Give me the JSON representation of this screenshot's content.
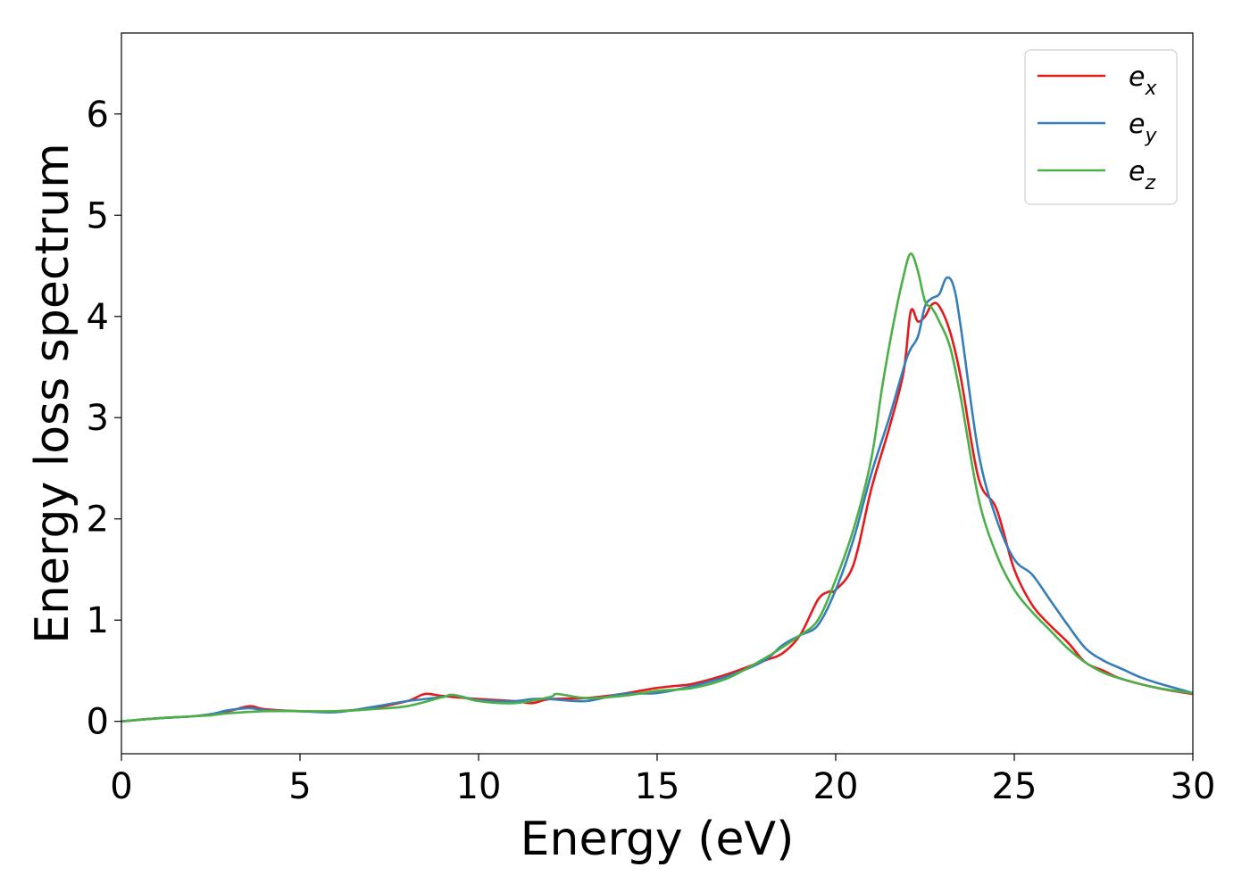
{
  "chart_data": {
    "type": "line",
    "title": "",
    "xlabel": "Energy (eV)",
    "ylabel": "Energy loss spectrum",
    "xlim": [
      0,
      30
    ],
    "ylim": [
      -0.32,
      6.8
    ],
    "x_ticks": [
      0,
      5,
      10,
      15,
      20,
      25,
      30
    ],
    "y_ticks": [
      0,
      1,
      2,
      3,
      4,
      5,
      6
    ],
    "x_tick_labels": [
      "0",
      "5",
      "10",
      "15",
      "20",
      "25",
      "30"
    ],
    "y_tick_labels": [
      "0",
      "1",
      "2",
      "3",
      "4",
      "5",
      "6"
    ],
    "grid": false,
    "legend_position": "top-right",
    "series": [
      {
        "name": "e_x",
        "legend_base": "e",
        "legend_sub": "x",
        "color": "#e41a1c",
        "x": [
          0,
          1,
          2,
          2.5,
          3,
          3.6,
          4,
          5,
          6,
          7,
          8,
          8.5,
          9,
          10,
          11,
          11.5,
          12,
          13,
          14,
          14.5,
          15,
          15.5,
          16,
          17,
          18,
          18.5,
          19,
          19.5,
          19.8,
          20,
          20.5,
          21,
          21.5,
          21.9,
          22.1,
          22.3,
          22.5,
          22.7,
          22.9,
          23.2,
          23.5,
          24,
          24.5,
          25,
          25.5,
          26,
          26.5,
          27,
          27.5,
          28,
          29,
          30
        ],
        "y": [
          0,
          0.03,
          0.05,
          0.07,
          0.1,
          0.15,
          0.12,
          0.1,
          0.1,
          0.13,
          0.2,
          0.27,
          0.25,
          0.22,
          0.2,
          0.18,
          0.22,
          0.23,
          0.27,
          0.3,
          0.33,
          0.35,
          0.37,
          0.47,
          0.6,
          0.67,
          0.85,
          1.2,
          1.28,
          1.3,
          1.55,
          2.3,
          2.9,
          3.45,
          4.05,
          3.95,
          4.0,
          4.12,
          4.1,
          3.85,
          3.4,
          2.4,
          2.1,
          1.5,
          1.15,
          0.95,
          0.78,
          0.58,
          0.5,
          0.42,
          0.33,
          0.27
        ]
      },
      {
        "name": "e_y",
        "legend_base": "e",
        "legend_sub": "y",
        "color": "#377eb8",
        "x": [
          0,
          1,
          2,
          2.5,
          3,
          3.6,
          4,
          5,
          6,
          7,
          8,
          9,
          9.3,
          10,
          11,
          11.5,
          12,
          13,
          14,
          15,
          16,
          17,
          18,
          18.5,
          19,
          19.5,
          20,
          20.5,
          21,
          21.5,
          22,
          22.3,
          22.5,
          22.7,
          22.9,
          23.1,
          23.3,
          23.5,
          24,
          24.5,
          25,
          25.5,
          26,
          26.5,
          27,
          27.5,
          28,
          28.5,
          29,
          30
        ],
        "y": [
          0,
          0.03,
          0.05,
          0.07,
          0.11,
          0.13,
          0.11,
          0.1,
          0.09,
          0.14,
          0.2,
          0.24,
          0.26,
          0.21,
          0.2,
          0.22,
          0.22,
          0.2,
          0.27,
          0.28,
          0.35,
          0.45,
          0.6,
          0.75,
          0.85,
          0.95,
          1.3,
          1.8,
          2.45,
          3.0,
          3.6,
          3.8,
          4.1,
          4.18,
          4.22,
          4.38,
          4.3,
          3.9,
          2.65,
          2.0,
          1.6,
          1.45,
          1.2,
          0.95,
          0.72,
          0.6,
          0.52,
          0.44,
          0.38,
          0.28
        ]
      },
      {
        "name": "e_z",
        "legend_base": "e",
        "legend_sub": "z",
        "color": "#4daf4a",
        "x": [
          0,
          1,
          2,
          2.5,
          3,
          4,
          5,
          6,
          7,
          8,
          9,
          9.3,
          10,
          11,
          12,
          12.2,
          13,
          14,
          15,
          16,
          17,
          18,
          18.5,
          19,
          19.5,
          20,
          20.5,
          21,
          21.3,
          21.6,
          21.9,
          22.1,
          22.3,
          22.5,
          22.7,
          22.9,
          23.2,
          23.5,
          24,
          24.5,
          25,
          25.5,
          26,
          26.5,
          27,
          27.5,
          28,
          29,
          30
        ],
        "y": [
          0,
          0.03,
          0.05,
          0.06,
          0.08,
          0.1,
          0.1,
          0.1,
          0.12,
          0.15,
          0.24,
          0.26,
          0.2,
          0.18,
          0.24,
          0.27,
          0.23,
          0.25,
          0.3,
          0.33,
          0.43,
          0.62,
          0.73,
          0.85,
          1.0,
          1.4,
          1.9,
          2.6,
          3.3,
          3.9,
          4.4,
          4.62,
          4.45,
          4.15,
          4.08,
          3.95,
          3.7,
          3.2,
          2.2,
          1.65,
          1.3,
          1.08,
          0.9,
          0.72,
          0.58,
          0.48,
          0.42,
          0.33,
          0.28
        ]
      }
    ]
  }
}
